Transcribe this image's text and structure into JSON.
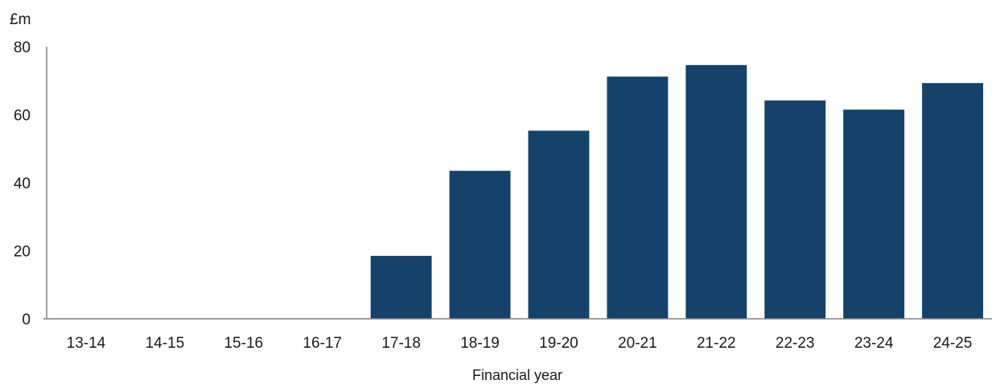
{
  "chart_data": {
    "type": "bar",
    "title": "",
    "ylabel": "£m",
    "xlabel": "Financial year",
    "categories": [
      "13-14",
      "14-15",
      "15-16",
      "16-17",
      "17-18",
      "18-19",
      "19-20",
      "20-21",
      "21-22",
      "22-23",
      "23-24",
      "24-25"
    ],
    "values": [
      0,
      0,
      0,
      0,
      18.5,
      43.5,
      55.3,
      71.2,
      74.6,
      64.2,
      61.5,
      69.3
    ],
    "ylim": [
      0,
      80
    ],
    "yticks": [
      0,
      20,
      40,
      60,
      80
    ],
    "grid": false,
    "legend": "none",
    "bar_color": "#14426b"
  }
}
